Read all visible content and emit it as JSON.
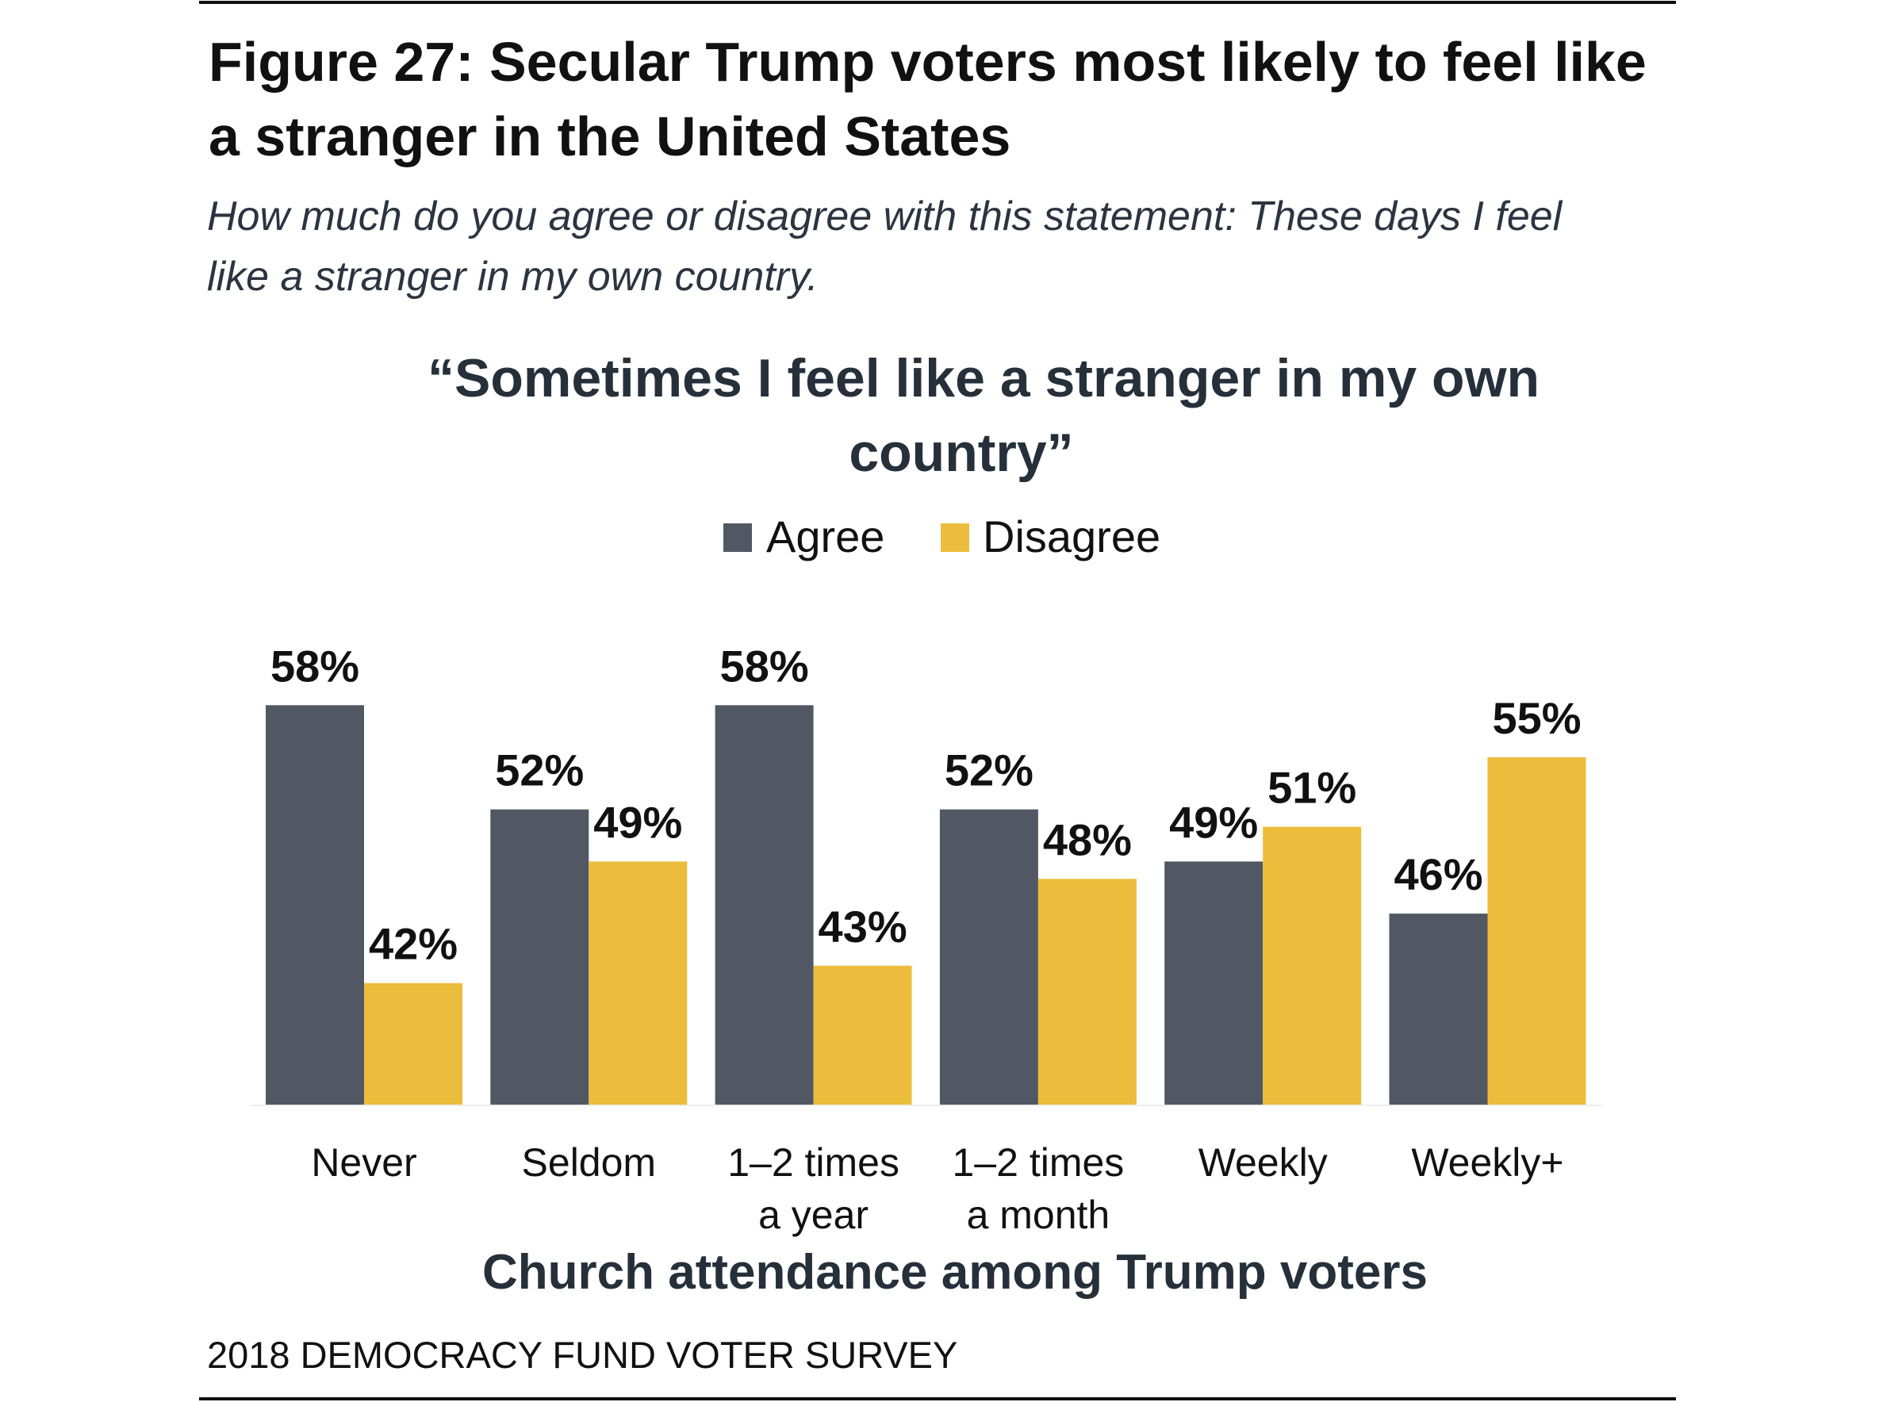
{
  "figure": {
    "title_lines": [
      "Figure 27: Secular Trump voters most likely to feel like",
      "a stranger in the United States"
    ],
    "subtitle_lines": [
      "How much do you agree or disagree with this statement: These days I feel",
      "like a stranger in my own country."
    ],
    "source": "2018 DEMOCRACY FUND VOTER SURVEY"
  },
  "chart_data": {
    "type": "bar",
    "title_lines": [
      "“Sometimes I feel like a stranger in my own",
      "country”"
    ],
    "xlabel": "Church attendance among Trump voters",
    "ylabel": "",
    "categories": [
      [
        "Never"
      ],
      [
        "Seldom"
      ],
      [
        "1–2 times",
        "a year"
      ],
      [
        "1–2 times",
        "a month"
      ],
      [
        "Weekly"
      ],
      [
        "Weekly+"
      ]
    ],
    "series": [
      {
        "name": "Agree",
        "color": "#515863",
        "values": [
          58,
          52,
          58,
          52,
          49,
          46
        ],
        "labels": [
          "58%",
          "52%",
          "58%",
          "52%",
          "49%",
          "46%"
        ]
      },
      {
        "name": "Disagree",
        "color": "#ecbd3c",
        "values": [
          42,
          49,
          43,
          48,
          51,
          55
        ],
        "labels": [
          "42%",
          "49%",
          "43%",
          "48%",
          "51%",
          "55%"
        ]
      }
    ],
    "ylim": [
      35,
      60
    ],
    "grid": false,
    "legend": "top-center"
  }
}
